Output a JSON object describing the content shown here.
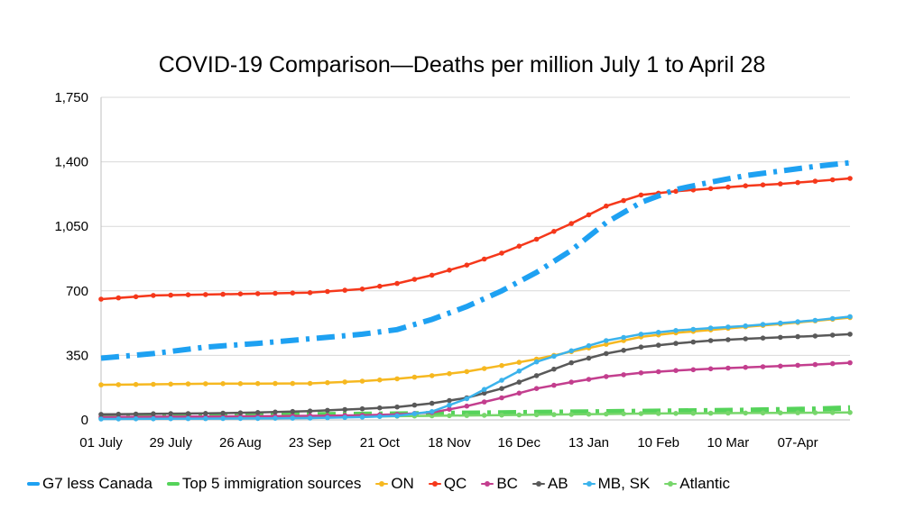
{
  "chart_data": {
    "type": "line",
    "title": "COVID-19 Comparison—Deaths per million July 1 to April 28",
    "xlabel": "",
    "ylabel": "",
    "ylim": [
      0,
      1750
    ],
    "yticks": [
      "0",
      "350",
      "700",
      "1,050",
      "1,400",
      "1,750"
    ],
    "ytick_values": [
      0,
      350,
      700,
      1050,
      1400,
      1750
    ],
    "xticks": [
      "01 July",
      "29 July",
      "26 Aug",
      "23 Sep",
      "21 Oct",
      "18 Nov",
      "16 Dec",
      "13 Jan",
      "10 Feb",
      "10 Mar",
      "07-Apr"
    ],
    "xtick_dates": [
      "2020-07-01",
      "2020-07-29",
      "2020-08-26",
      "2020-09-23",
      "2020-10-21",
      "2020-11-18",
      "2020-12-16",
      "2021-01-13",
      "2021-02-10",
      "2021-03-10",
      "2021-04-07"
    ],
    "x_range": [
      "2020-07-01",
      "2021-04-28"
    ],
    "grid": "y-major-horizontal",
    "legend_position": "bottom",
    "x": [
      "2020-07-01",
      "2020-07-22",
      "2020-08-12",
      "2020-09-02",
      "2020-09-23",
      "2020-10-14",
      "2020-10-28",
      "2020-11-11",
      "2020-11-25",
      "2020-12-09",
      "2020-12-23",
      "2021-01-06",
      "2021-01-20",
      "2021-02-03",
      "2021-02-17",
      "2021-03-03",
      "2021-03-17",
      "2021-03-31",
      "2021-04-14",
      "2021-04-28"
    ],
    "series": [
      {
        "name": "G7 less Canada",
        "color": "#1ea1f2",
        "style": "dash-dot-thick",
        "values": [
          335,
          360,
          395,
          415,
          440,
          465,
          490,
          545,
          615,
          700,
          800,
          920,
          1070,
          1180,
          1250,
          1290,
          1325,
          1350,
          1375,
          1395
        ]
      },
      {
        "name": "Top 5 immigration sources",
        "color": "#55d35a",
        "style": "dash-dot-thick",
        "values": [
          20,
          22,
          24,
          26,
          28,
          30,
          32,
          34,
          36,
          38,
          40,
          42,
          44,
          46,
          48,
          50,
          52,
          55,
          58,
          65
        ]
      },
      {
        "name": "ON",
        "color": "#f6b820",
        "style": "dotted-markers",
        "values": [
          190,
          193,
          196,
          197,
          198,
          210,
          223,
          240,
          262,
          295,
          330,
          370,
          410,
          450,
          472,
          488,
          505,
          520,
          537,
          555
        ]
      },
      {
        "name": "QC",
        "color": "#f5381b",
        "style": "dotted-markers",
        "values": [
          655,
          675,
          680,
          685,
          690,
          710,
          740,
          785,
          840,
          905,
          980,
          1065,
          1160,
          1220,
          1240,
          1255,
          1270,
          1280,
          1295,
          1310
        ]
      },
      {
        "name": "BC",
        "color": "#c33e8e",
        "style": "dotted-markers",
        "values": [
          15,
          17,
          18,
          20,
          22,
          25,
          30,
          40,
          75,
          120,
          170,
          205,
          235,
          255,
          268,
          277,
          285,
          292,
          300,
          310
        ]
      },
      {
        "name": "AB",
        "color": "#595959",
        "style": "dotted-markers",
        "values": [
          30,
          33,
          35,
          40,
          48,
          60,
          70,
          90,
          120,
          170,
          240,
          310,
          360,
          395,
          415,
          430,
          440,
          448,
          455,
          465
        ]
      },
      {
        "name": "MB, SK",
        "color": "#3bb3ec",
        "style": "dotted-markers",
        "values": [
          5,
          6,
          7,
          8,
          10,
          15,
          22,
          45,
          115,
          215,
          315,
          375,
          430,
          465,
          485,
          498,
          510,
          525,
          540,
          560
        ]
      },
      {
        "name": "Atlantic",
        "color": "#77d66b",
        "style": "dotted-markers",
        "values": [
          10,
          11,
          12,
          13,
          15,
          17,
          20,
          22,
          24,
          26,
          28,
          30,
          32,
          34,
          35,
          36,
          37,
          38,
          39,
          40
        ]
      }
    ]
  }
}
